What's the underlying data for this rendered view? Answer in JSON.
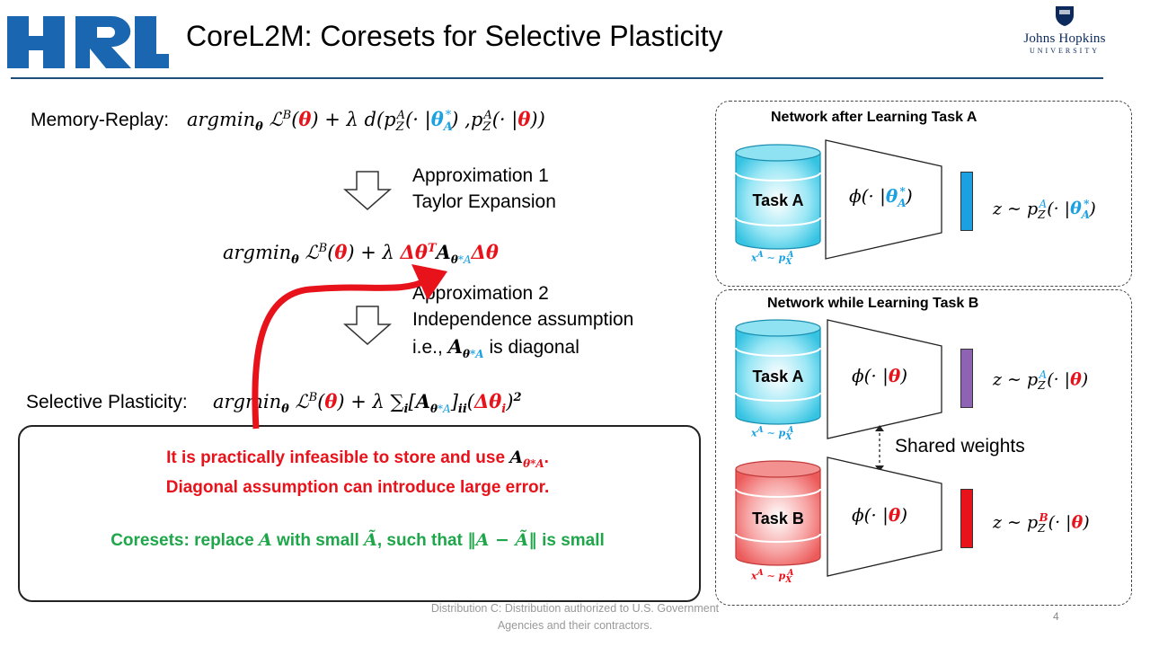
{
  "header": {
    "logo_text": "HRL",
    "title": "CoreL2M: Coresets for Selective Plasticity",
    "university_line1": "Johns Hopkins",
    "university_line2": "UNIVERSITY"
  },
  "left": {
    "memory_replay_label": "Memory-Replay:",
    "approx1_line1": "Approximation 1",
    "approx1_line2": "Taylor Expansion",
    "approx2_line1": "Approximation 2",
    "approx2_line2": "Independence assumption",
    "approx2_line3_prefix": "i.e.,",
    "approx2_line3_suffix": "is diagonal",
    "selective_label": "Selective Plasticity:"
  },
  "callout": {
    "line1": "It is practically infeasible to store and use",
    "line2": "Diagonal assumption can introduce large error.",
    "line3_a": "Coresets: replace",
    "line3_b": "with small",
    "line3_c": "such that",
    "line3_d": "is small"
  },
  "panel_a": {
    "title": "Network after Learning Task A",
    "db_label": "Task A"
  },
  "panel_b": {
    "title": "Network while Learning Task B",
    "db_top_label": "Task A",
    "db_bottom_label": "Task B",
    "shared": "Shared weights"
  },
  "colors": {
    "accent_blue": "#1ba1e2",
    "accent_red": "#e8121b",
    "accent_green": "#1fa64a",
    "purple": "#8e63b3",
    "hrl_blue": "#1a66b0"
  },
  "footer": {
    "distribution_line1": "Distribution C: Distribution authorized to U.S. Government",
    "distribution_line2": "Agencies and their contractors.",
    "page_number": "4"
  }
}
